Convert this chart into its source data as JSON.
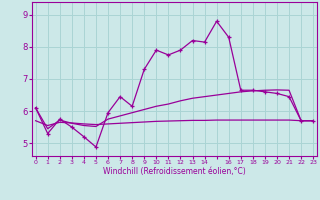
{
  "xlabel": "Windchill (Refroidissement éolien,°C)",
  "bg_color": "#cce8e8",
  "grid_color": "#aad4d4",
  "line_color": "#990099",
  "ylim": [
    4.6,
    9.4
  ],
  "y_ticks": [
    5,
    6,
    7,
    8,
    9
  ],
  "xlim": [
    -0.3,
    23.3
  ],
  "main_x": [
    0,
    1,
    2,
    3,
    4,
    5,
    6,
    7,
    8,
    9,
    10,
    11,
    12,
    13,
    14,
    15,
    16,
    17,
    18,
    19,
    20,
    21,
    22,
    23
  ],
  "main_y": [
    6.1,
    5.3,
    5.75,
    5.5,
    5.2,
    4.88,
    5.95,
    6.45,
    6.15,
    7.3,
    7.9,
    7.75,
    7.9,
    8.2,
    8.15,
    8.8,
    8.3,
    6.65,
    6.65,
    6.6,
    6.55,
    6.45,
    5.7,
    5.7
  ],
  "line2_x": [
    0,
    1,
    2,
    3,
    4,
    5,
    6,
    7,
    8,
    9,
    10,
    11,
    12,
    13,
    14,
    15,
    16,
    17,
    18,
    19,
    20,
    21,
    22,
    23
  ],
  "line2_y": [
    6.1,
    5.45,
    5.72,
    5.62,
    5.55,
    5.52,
    5.75,
    5.85,
    5.95,
    6.05,
    6.15,
    6.22,
    6.32,
    6.4,
    6.45,
    6.5,
    6.55,
    6.6,
    6.63,
    6.65,
    6.66,
    6.65,
    5.7,
    5.7
  ],
  "line3_x": [
    0,
    1,
    2,
    3,
    4,
    5,
    6,
    7,
    8,
    9,
    10,
    11,
    12,
    13,
    14,
    15,
    16,
    17,
    18,
    19,
    20,
    21,
    22,
    23
  ],
  "line3_y": [
    5.7,
    5.55,
    5.65,
    5.63,
    5.6,
    5.58,
    5.6,
    5.62,
    5.64,
    5.66,
    5.68,
    5.69,
    5.7,
    5.71,
    5.71,
    5.72,
    5.72,
    5.72,
    5.72,
    5.72,
    5.72,
    5.72,
    5.7,
    5.7
  ]
}
